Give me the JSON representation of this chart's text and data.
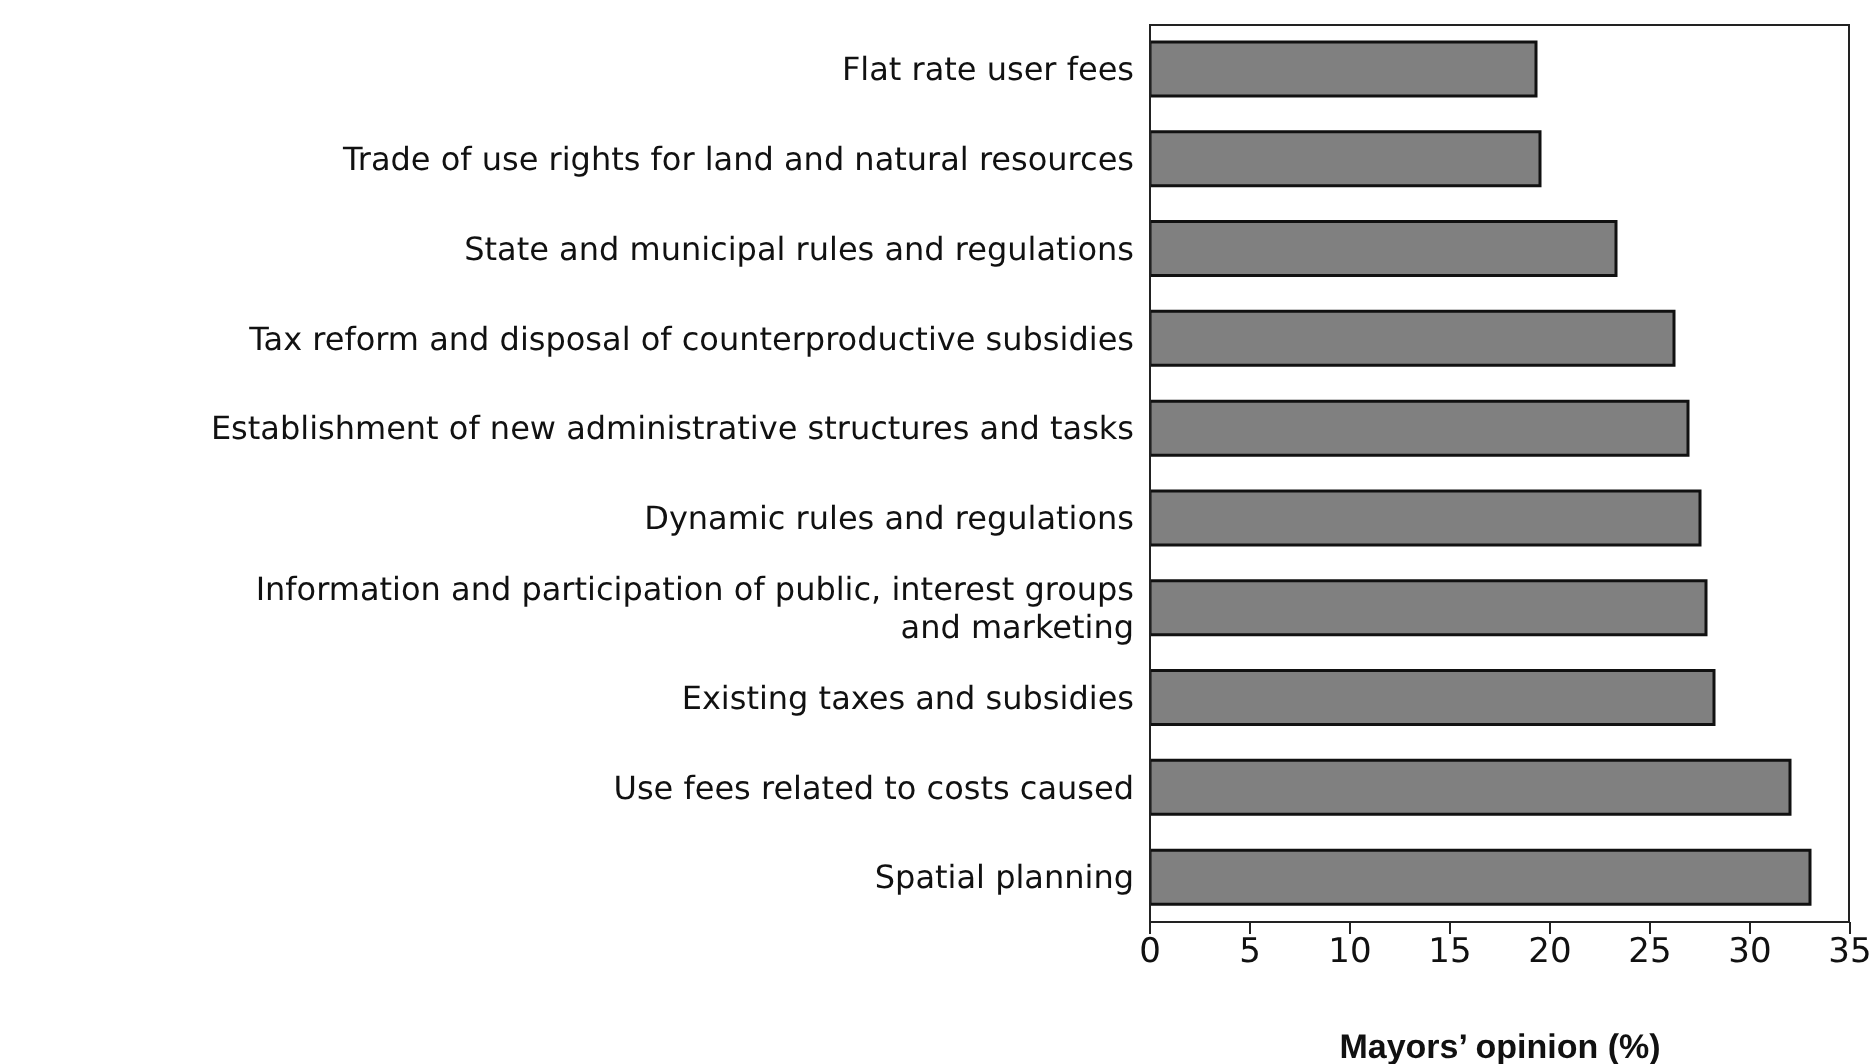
{
  "chart_data": {
    "type": "bar",
    "orientation": "horizontal",
    "xlabel": "Mayors’ opinion (%)",
    "categories": [
      "Flat rate user fees",
      "Trade of use rights for land and natural resources",
      "State and municipal rules and regulations",
      "Tax reform and disposal of counterproductive subsidies",
      "Establishment of new administrative structures and tasks",
      "Dynamic rules and regulations",
      "Information and participation of public, interest groups and marketing",
      "Existing taxes and subsidies",
      "Use fees related to costs caused",
      "Spatial planning"
    ],
    "values": [
      19.3,
      19.5,
      23.3,
      26.2,
      26.9,
      27.5,
      27.8,
      28.2,
      32.0,
      33.0
    ],
    "color": "#808080",
    "xlim": [
      0,
      35
    ],
    "xticks": [
      0,
      5,
      10,
      15,
      20,
      25,
      30,
      35
    ]
  }
}
